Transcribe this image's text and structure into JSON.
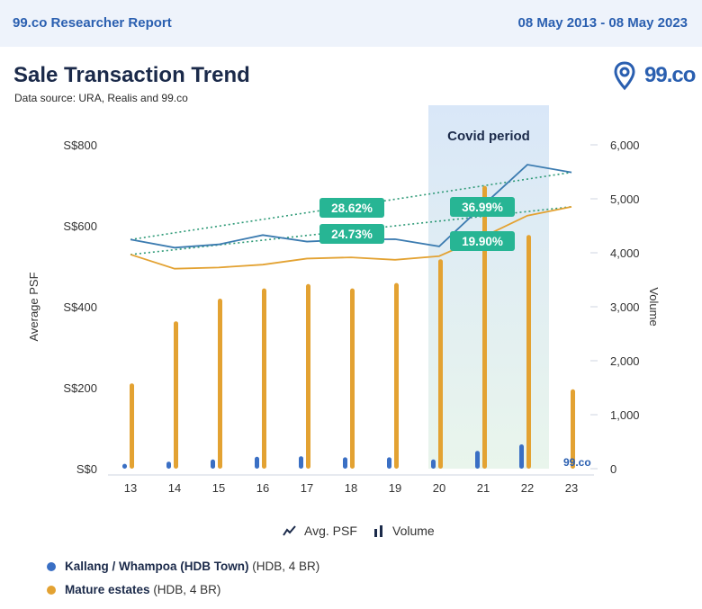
{
  "header": {
    "brand": "99.co Researcher Report",
    "date_range": "08 May 2013 - 08 May 2023"
  },
  "title": "Sale Transaction Trend",
  "source": "Data source: URA, Realis and 99.co",
  "logo_text": "99.co",
  "watermark": "99.co",
  "colors": {
    "kallang": "#3a6fc4",
    "mature": "#e3a232",
    "trend": "#2e9a77",
    "badge": "#27b594",
    "covid": "#dce9f8"
  },
  "chart_data": {
    "type": "bar+line",
    "categories": [
      "13",
      "14",
      "15",
      "16",
      "17",
      "18",
      "19",
      "20",
      "21",
      "22",
      "23"
    ],
    "y_left": {
      "label": "Average PSF",
      "ticks": [
        "S$0",
        "S$200",
        "S$400",
        "S$600",
        "S$800"
      ],
      "range": [
        0,
        800
      ]
    },
    "y_right": {
      "label": "Volume",
      "ticks": [
        "0",
        "1,000",
        "2,000",
        "3,000",
        "4,000",
        "5,000",
        "6,000"
      ],
      "range": [
        0,
        6000
      ]
    },
    "series": [
      {
        "name": "Kallang / Whampoa (HDB Town)",
        "detail": "(HDB, 4 BR)",
        "color": "#3a6fc4",
        "psf": [
          566,
          546,
          554,
          577,
          561,
          566,
          567,
          549,
          651,
          751,
          732
        ],
        "volume": [
          90,
          130,
          170,
          220,
          230,
          210,
          210,
          170,
          330,
          450,
          0
        ]
      },
      {
        "name": "Mature estates",
        "detail": "(HDB, 4 BR)",
        "color": "#e3a232",
        "psf": [
          529,
          494,
          497,
          504,
          519,
          522,
          516,
          525,
          573,
          625,
          647
        ],
        "volume": [
          1580,
          2730,
          3150,
          3340,
          3420,
          3340,
          3440,
          3880,
          5240,
          4330,
          1470
        ]
      }
    ],
    "trend_labels": [
      {
        "text": "28.62%",
        "series": "Kallang / Whampoa (HDB Town)",
        "period": "13-20"
      },
      {
        "text": "24.73%",
        "series": "Mature estates",
        "period": "13-20"
      },
      {
        "text": "36.99%",
        "series": "Kallang / Whampoa (HDB Town)",
        "period": "21-23"
      },
      {
        "text": "19.90%",
        "series": "Mature estates",
        "period": "21-23"
      }
    ],
    "highlight": {
      "label": "Covid period",
      "from": "20",
      "to": "22"
    },
    "legend": {
      "psf": "Avg. PSF",
      "volume": "Volume"
    }
  }
}
